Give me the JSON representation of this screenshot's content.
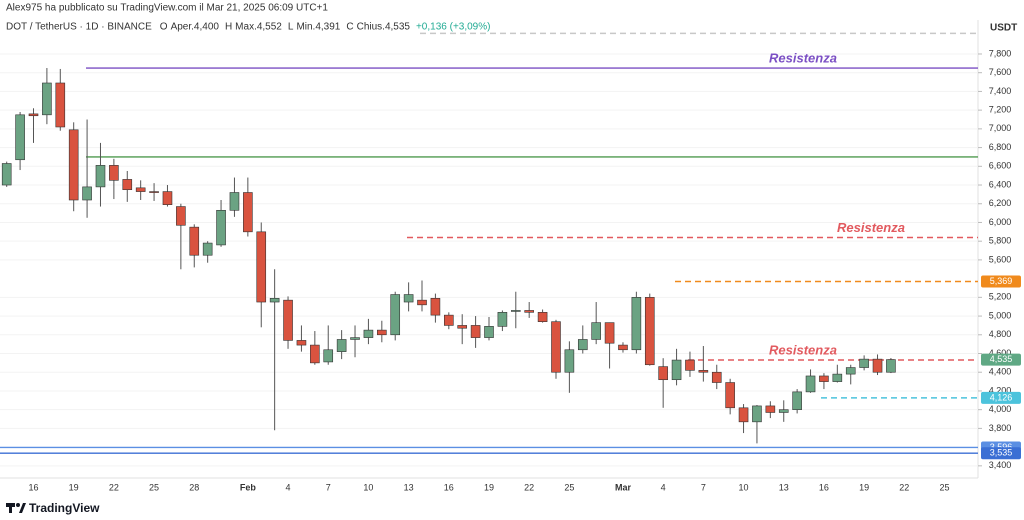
{
  "header": {
    "publisher": "Alex975 ha pubblicato su TradingView.com il Mar 21, 2025 06:09 UTC+1",
    "symbol": "DOT / TetherUS · 1D · BINANCE",
    "ohlc": [
      "O",
      "Aper.4,400",
      "H",
      "Max.4,552",
      "L",
      "Min.4,391",
      "C",
      "Chius.4,535",
      "+0,136 (+3,09%)"
    ]
  },
  "footer": {
    "brand": "TradingView"
  },
  "chart_data": {
    "type": "candlestick",
    "y_axis_label": "USDT",
    "up_color": "#6ba383",
    "down_color": "#d9533f",
    "grid": true,
    "ylim": [
      3270,
      8163
    ],
    "yticks": [
      {
        "value": 3400,
        "label": "3,400"
      },
      {
        "value": 3800,
        "label": "3,800"
      },
      {
        "value": 4000,
        "label": "4,000"
      },
      {
        "value": 4200,
        "label": "4,200"
      },
      {
        "value": 4400,
        "label": "4,400"
      },
      {
        "value": 4600,
        "label": "4,600"
      },
      {
        "value": 4800,
        "label": "4,800"
      },
      {
        "value": 5000,
        "label": "5,000"
      },
      {
        "value": 5200,
        "label": "5,200"
      },
      {
        "value": 5600,
        "label": "5,600"
      },
      {
        "value": 5800,
        "label": "5,800"
      },
      {
        "value": 6000,
        "label": "6,000"
      },
      {
        "value": 6200,
        "label": "6,200"
      },
      {
        "value": 6400,
        "label": "6,400"
      },
      {
        "value": 6600,
        "label": "6,600"
      },
      {
        "value": 6800,
        "label": "6,800"
      },
      {
        "value": 7000,
        "label": "7,000"
      },
      {
        "value": 7200,
        "label": "7,200"
      },
      {
        "value": 7400,
        "label": "7,400"
      },
      {
        "value": 7600,
        "label": "7,600"
      },
      {
        "value": 7800,
        "label": "7,800"
      }
    ],
    "categories": [
      null,
      null,
      "16",
      null,
      null,
      "19",
      null,
      null,
      "22",
      null,
      null,
      "25",
      null,
      null,
      "28",
      null,
      null,
      null,
      "Feb",
      null,
      null,
      "4",
      null,
      null,
      "7",
      null,
      null,
      "10",
      null,
      null,
      "13",
      null,
      null,
      "16",
      null,
      null,
      "19",
      null,
      null,
      "22",
      null,
      null,
      "25",
      null,
      null,
      null,
      "Mar",
      null,
      null,
      "4",
      null,
      null,
      "7",
      null,
      null,
      "10",
      null,
      null,
      "13",
      null,
      null,
      "16",
      null,
      null,
      "19",
      null,
      null,
      "22",
      null,
      null,
      "25",
      null,
      null
    ],
    "open": [
      6400,
      6670,
      7160,
      7150,
      7490,
      6990,
      6240,
      6380,
      6610,
      6460,
      6370,
      6330,
      6330,
      6170,
      5950,
      5650,
      5760,
      6130,
      6320,
      5900,
      5150,
      5170,
      4740,
      4690,
      4510,
      4620,
      4750,
      4770,
      4850,
      4800,
      5150,
      5170,
      5190,
      5010,
      4900,
      4900,
      4770,
      4890,
      5050,
      5060,
      5040,
      4940,
      4400,
      4640,
      4750,
      4930,
      4690,
      4640,
      5200,
      4460,
      4320,
      4530,
      4420,
      4400,
      4290,
      4020,
      3870,
      4040,
      3970,
      4000,
      4190,
      4360,
      4300,
      4380,
      4450,
      4540,
      4400,
      null,
      null,
      null,
      null,
      null,
      null
    ],
    "high": [
      6650,
      7180,
      7220,
      7650,
      7640,
      7070,
      7100,
      6850,
      6680,
      6550,
      6450,
      6420,
      6400,
      6200,
      5980,
      5800,
      6240,
      6480,
      6480,
      6000,
      5500,
      5210,
      4900,
      4840,
      4900,
      4850,
      4900,
      4970,
      4950,
      5260,
      5360,
      5380,
      5240,
      5040,
      5020,
      5000,
      4990,
      5060,
      5260,
      5150,
      5070,
      4960,
      4730,
      4900,
      5150,
      4930,
      4720,
      5260,
      5240,
      4550,
      4650,
      4620,
      4680,
      4480,
      4330,
      4060,
      4050,
      4090,
      4100,
      4220,
      4430,
      4390,
      4480,
      4480,
      4580,
      4590,
      4552,
      null,
      null,
      null,
      null,
      null,
      null
    ],
    "low": [
      6380,
      6560,
      6850,
      7050,
      6980,
      6120,
      6050,
      6170,
      6250,
      6220,
      6240,
      6230,
      6170,
      5500,
      5520,
      5570,
      5740,
      6060,
      5850,
      4880,
      3780,
      4650,
      4620,
      4480,
      4480,
      4540,
      4560,
      4700,
      4720,
      4740,
      5050,
      5050,
      4930,
      4860,
      4700,
      4660,
      4740,
      4840,
      4870,
      4980,
      4930,
      4330,
      4180,
      4600,
      4700,
      4440,
      4610,
      4600,
      4470,
      4020,
      4260,
      4350,
      4300,
      4220,
      3950,
      3750,
      3640,
      3910,
      3870,
      3960,
      4180,
      4220,
      4290,
      4270,
      4420,
      4370,
      4391,
      null,
      null,
      null,
      null,
      null,
      null
    ],
    "close": [
      6630,
      7150,
      7140,
      7490,
      7020,
      6240,
      6380,
      6610,
      6450,
      6350,
      6330,
      6320,
      6190,
      5970,
      5650,
      5780,
      6130,
      6320,
      5900,
      5150,
      5190,
      4740,
      4690,
      4500,
      4640,
      4750,
      4770,
      4850,
      4800,
      5230,
      5230,
      5120,
      5010,
      4900,
      4870,
      4770,
      4890,
      5040,
      5060,
      5040,
      4940,
      4400,
      4640,
      4750,
      4930,
      4710,
      4640,
      5200,
      4480,
      4320,
      4530,
      4420,
      4400,
      4290,
      4020,
      3870,
      4040,
      3970,
      4000,
      4190,
      4360,
      4300,
      4380,
      4450,
      4540,
      4400,
      4535,
      null,
      null,
      null,
      null,
      null,
      null
    ],
    "last_price": {
      "value": 4535,
      "label": "4,535",
      "color": "#5fa884"
    },
    "levels": [
      {
        "value": 8020,
        "color": "#c8c8c8",
        "style": "dashed"
      },
      {
        "value": 7650,
        "color": "#7b4fc4",
        "style": "solid",
        "text": "Resistenza"
      },
      {
        "value": 6700,
        "color": "#4f9a4f",
        "style": "solid"
      },
      {
        "value": 5840,
        "color": "#e25a5f",
        "style": "dashed",
        "text": "Resistenza"
      },
      {
        "value": 5369,
        "color": "#f08a1c",
        "style": "dashed",
        "tag": "5,369"
      },
      {
        "value": 4530,
        "color": "#e25a5f",
        "style": "dashed",
        "text": "Resistenza"
      },
      {
        "value": 4126,
        "color": "#4cc3dc",
        "style": "dashed",
        "tag": "4,126"
      },
      {
        "value": 3596,
        "color": "#5b8fe3",
        "style": "solid",
        "tag": "3,596"
      },
      {
        "value": 3535,
        "color": "#3b6fd4",
        "style": "solid",
        "tag": "3,535"
      }
    ]
  }
}
